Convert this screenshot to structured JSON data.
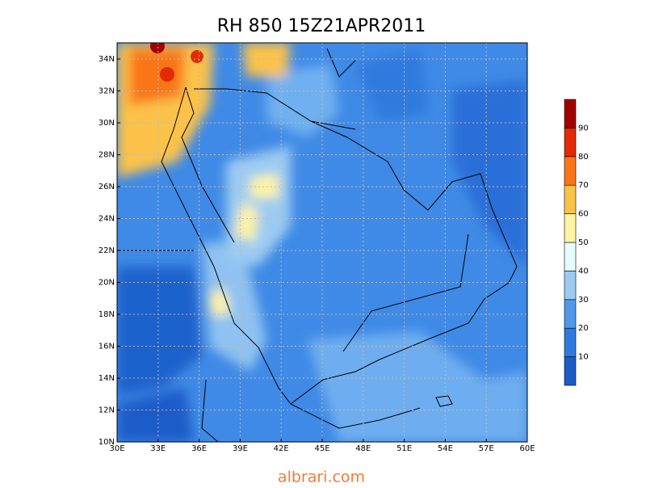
{
  "title": "RH 850 15Z21APR2011",
  "map": {
    "lon_labels": [
      "30E",
      "33E",
      "36E",
      "39E",
      "42E",
      "45E",
      "48E",
      "51E",
      "54E",
      "57E",
      "60E"
    ],
    "lat_labels": [
      "10N",
      "12N",
      "14N",
      "16N",
      "18N",
      "20N",
      "22N",
      "24N",
      "26N",
      "28N",
      "30N",
      "32N",
      "34N"
    ]
  },
  "colorbar": {
    "ticks": [
      10,
      20,
      30,
      40,
      50,
      60,
      70,
      80,
      90
    ],
    "colors": [
      "#1c5cc8",
      "#2f7ade",
      "#4f98ea",
      "#9ccbf2",
      "#e6fbff",
      "#fff4a2",
      "#fbc24a",
      "#fa7418",
      "#e42a02",
      "#a20000"
    ]
  },
  "watermark": "albrari.com"
}
